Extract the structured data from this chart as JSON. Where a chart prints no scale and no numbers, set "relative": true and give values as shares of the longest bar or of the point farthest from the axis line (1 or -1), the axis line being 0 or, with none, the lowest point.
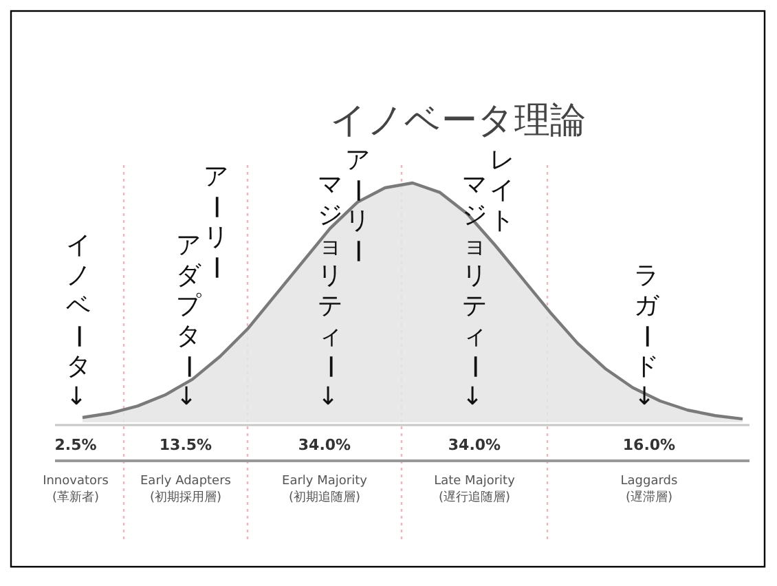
{
  "chart_data": {
    "type": "area",
    "title": "イノベータ理論",
    "relative": true,
    "categories": [
      null,
      null,
      null,
      null,
      null,
      null,
      null,
      null,
      null,
      null,
      null,
      null,
      null,
      null,
      null,
      null,
      null,
      null,
      null,
      null,
      null,
      null,
      null,
      null,
      null
    ],
    "values": [
      0.02,
      0.038,
      0.068,
      0.114,
      0.18,
      0.275,
      0.39,
      0.53,
      0.67,
      0.81,
      0.92,
      0.98,
      1.0,
      0.96,
      0.87,
      0.74,
      0.6,
      0.46,
      0.33,
      0.225,
      0.145,
      0.089,
      0.051,
      0.028,
      0.014
    ],
    "color": "#e4e4e4",
    "annotations": [
      "イノベータ↓",
      "アーリー",
      "アダプター↓",
      "アーリー",
      "マジョリティー↓",
      "レイト",
      "マジョリティー↓",
      "ラガード↓",
      "2.5%",
      "13.5%",
      "34.0%",
      "34.0%",
      "16.0%",
      "Innovators\n(革新者)",
      "Early Adapters\n(初期採用層)",
      "Early Majority\n(初期追随層)",
      "Late Majority\n(遅行追随層)",
      "Laggards\n(遅滞層)"
    ]
  }
}
